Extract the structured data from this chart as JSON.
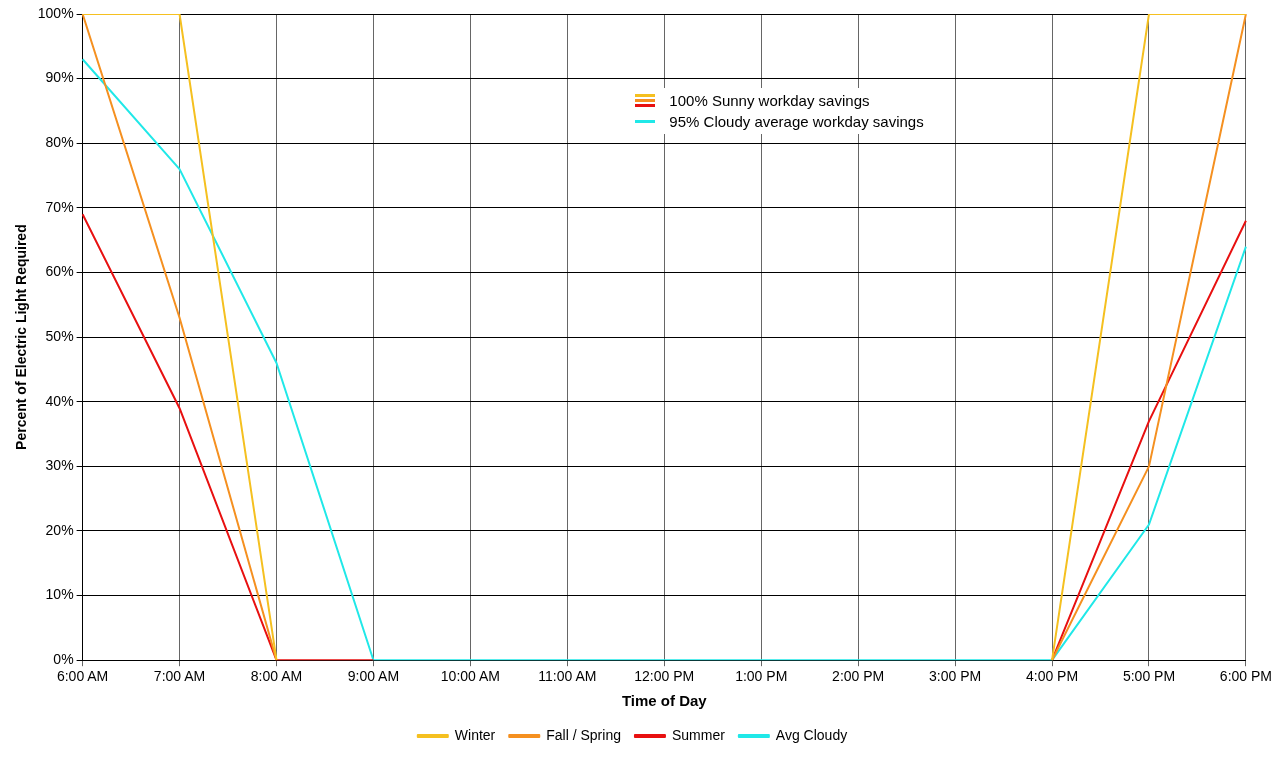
{
  "chart_data": {
    "type": "line",
    "xlabel": "Time of Day",
    "ylabel": "Percent of Electric Light Required",
    "categories": [
      "6:00 AM",
      "7:00 AM",
      "8:00 AM",
      "9:00 AM",
      "10:00 AM",
      "11:00 AM",
      "12:00 PM",
      "1:00 PM",
      "2:00 PM",
      "3:00 PM",
      "4:00 PM",
      "5:00 PM",
      "6:00 PM"
    ],
    "series": [
      {
        "name": "Winter",
        "color": "#f5c020",
        "values": [
          100,
          100,
          0,
          null,
          null,
          null,
          null,
          null,
          null,
          null,
          0,
          100,
          100
        ]
      },
      {
        "name": "Fall / Spring",
        "color": "#f59020",
        "values": [
          100,
          53,
          0,
          null,
          null,
          null,
          null,
          null,
          null,
          null,
          0,
          30,
          100
        ]
      },
      {
        "name": "Summer",
        "color": "#e81010",
        "values": [
          69,
          39,
          0,
          0,
          null,
          null,
          null,
          null,
          null,
          null,
          0,
          37,
          68
        ]
      },
      {
        "name": "Avg Cloudy",
        "color": "#20e8e8",
        "values": [
          93,
          76,
          46,
          0,
          0,
          0,
          0,
          0,
          0,
          0,
          0,
          21,
          64
        ]
      }
    ],
    "ylim": [
      0,
      100
    ],
    "yticks": [
      {
        "value": 0,
        "label": "0%"
      },
      {
        "value": 10,
        "label": "10%"
      },
      {
        "value": 20,
        "label": "20%"
      },
      {
        "value": 30,
        "label": "30%"
      },
      {
        "value": 40,
        "label": "40%"
      },
      {
        "value": 50,
        "label": "50%"
      },
      {
        "value": 60,
        "label": "60%"
      },
      {
        "value": 70,
        "label": "70%"
      },
      {
        "value": 80,
        "label": "80%"
      },
      {
        "value": 90,
        "label": "90%"
      },
      {
        "value": 100,
        "label": "100%"
      }
    ],
    "annotations": [
      "100% Sunny workday savings",
      "95% Cloudy average workday savings"
    ],
    "grid": true,
    "legend": "bottom",
    "marker": "none",
    "line_style": "solid"
  }
}
